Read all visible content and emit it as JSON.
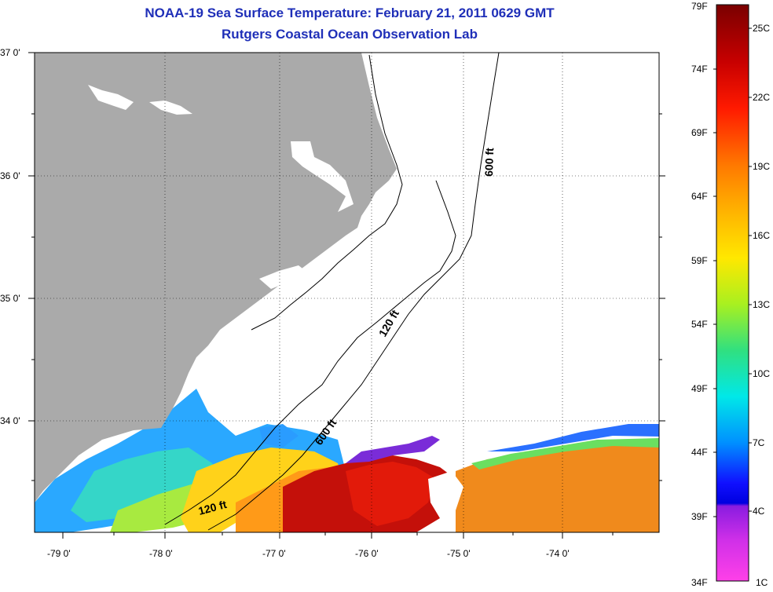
{
  "title_line1": "NOAA-19 Sea Surface Temperature:  February 21, 2011 0629 GMT",
  "title_line2": "Rutgers Coastal Ocean Observation Lab",
  "lat_labels": [
    "37 0'",
    "36 0'",
    "35 0'",
    "34 0'"
  ],
  "lon_labels": [
    "-79 0'",
    "-78 0'",
    "-77 0'",
    "-76 0'",
    "-75 0'",
    "-74 0'"
  ],
  "contours": {
    "shallow": "120 ft",
    "deep": "600 ft"
  },
  "colorbar": {
    "fahrenheit": [
      "79F",
      "74F",
      "69F",
      "64F",
      "59F",
      "54F",
      "49F",
      "44F",
      "39F",
      "34F"
    ],
    "celsius": [
      "25C",
      "22C",
      "19C",
      "16C",
      "13C",
      "10C",
      "7C",
      "4C",
      "1C"
    ]
  },
  "colors": {
    "land": "#aaaaaa",
    "title": "#1f2fb8",
    "warm": "#c4100a",
    "orange": "#f08a1c",
    "cold": "#1a8cff"
  }
}
